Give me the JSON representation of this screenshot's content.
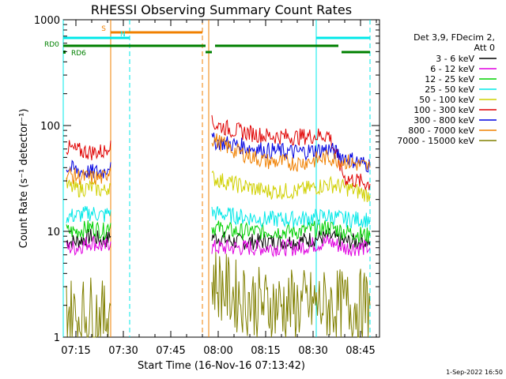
{
  "chart_data": {
    "type": "line",
    "title": "RHESSI Observing Summary Count Rates",
    "xlabel": "Start Time (16-Nov-16 07:13:42)",
    "ylabel": "Count Rate (s⁻¹ detector⁻¹)",
    "yscale": "log",
    "ylim": [
      1,
      1000
    ],
    "xlim": [
      "07:11",
      "08:51"
    ],
    "xticks": [
      "07:15",
      "07:30",
      "07:45",
      "08:00",
      "08:15",
      "08:30",
      "08:45"
    ],
    "yticks": [
      "1",
      "10",
      "100",
      "1000"
    ],
    "footer": "1-Sep-2022 16:50",
    "legend": {
      "header": [
        "Det 3,9, FDecim 2,",
        "Att 0"
      ],
      "position": "right"
    },
    "series": [
      {
        "name": "3 - 6 keV",
        "color": "#000000",
        "segments": [
          {
            "times": [
              "07:12",
              "07:15",
              "07:20",
              "07:24",
              "07:26"
            ],
            "values": [
              8,
              8,
              9,
              8,
              9
            ]
          },
          {
            "times": [
              "07:58",
              "08:05",
              "08:15",
              "08:25",
              "08:35",
              "08:40",
              "08:48"
            ],
            "values": [
              9,
              8,
              8,
              8,
              9,
              8,
              8
            ]
          }
        ]
      },
      {
        "name": "6 - 12 keV",
        "color": "#e000e0",
        "segments": [
          {
            "times": [
              "07:12",
              "07:15",
              "07:20",
              "07:24",
              "07:26"
            ],
            "values": [
              7,
              7,
              8,
              7,
              8
            ]
          },
          {
            "times": [
              "07:58",
              "08:05",
              "08:15",
              "08:25",
              "08:35",
              "08:40",
              "08:48"
            ],
            "values": [
              7,
              7,
              7,
              7,
              8,
              7,
              7
            ]
          }
        ]
      },
      {
        "name": "12 - 25 keV",
        "color": "#00d000",
        "segments": [
          {
            "times": [
              "07:12",
              "07:15",
              "07:20",
              "07:24",
              "07:26"
            ],
            "values": [
              10,
              10,
              11,
              10,
              12
            ]
          },
          {
            "times": [
              "07:58",
              "08:05",
              "08:15",
              "08:25",
              "08:35",
              "08:40",
              "08:48"
            ],
            "values": [
              11,
              10,
              10,
              10,
              11,
              10,
              9
            ]
          }
        ]
      },
      {
        "name": "25 - 50 keV",
        "color": "#00e8e8",
        "segments": [
          {
            "times": [
              "07:12",
              "07:15",
              "07:20",
              "07:24",
              "07:26"
            ],
            "values": [
              14,
              14,
              15,
              14,
              16
            ]
          },
          {
            "times": [
              "07:58",
              "08:05",
              "08:15",
              "08:25",
              "08:35",
              "08:40",
              "08:48"
            ],
            "values": [
              15,
              14,
              13,
              13,
              14,
              13,
              13
            ]
          }
        ]
      },
      {
        "name": "50 - 100 keV",
        "color": "#d0d000",
        "segments": [
          {
            "times": [
              "07:12",
              "07:15",
              "07:20",
              "07:24",
              "07:26"
            ],
            "values": [
              27,
              25,
              26,
              24,
              28
            ]
          },
          {
            "times": [
              "07:58",
              "08:05",
              "08:15",
              "08:25",
              "08:35",
              "08:40",
              "08:48"
            ],
            "values": [
              32,
              28,
              24,
              24,
              28,
              26,
              22
            ]
          }
        ]
      },
      {
        "name": "100 - 300 keV",
        "color": "#e00000",
        "segments": [
          {
            "times": [
              "07:12",
              "07:15",
              "07:20",
              "07:24",
              "07:26"
            ],
            "values": [
              62,
              58,
              56,
              57,
              72
            ]
          },
          {
            "times": [
              "07:58",
              "08:05",
              "08:15",
              "08:25",
              "08:35",
              "08:40",
              "08:48"
            ],
            "values": [
              105,
              90,
              80,
              78,
              82,
              32,
              28
            ]
          }
        ]
      },
      {
        "name": "300 - 800 keV",
        "color": "#0000e0",
        "segments": [
          {
            "times": [
              "07:12",
              "07:15",
              "07:20",
              "07:24",
              "07:26"
            ],
            "values": [
              40,
              38,
              36,
              37,
              45
            ]
          },
          {
            "times": [
              "07:58",
              "08:05",
              "08:15",
              "08:25",
              "08:35",
              "08:40",
              "08:48"
            ],
            "values": [
              72,
              66,
              58,
              56,
              60,
              50,
              42
            ]
          }
        ]
      },
      {
        "name": "800 - 7000 keV",
        "color": "#f08000",
        "segments": [
          {
            "times": [
              "07:12",
              "07:15",
              "07:20",
              "07:24",
              "07:26"
            ],
            "values": [
              35,
              33,
              32,
              32,
              40
            ]
          },
          {
            "times": [
              "07:58",
              "08:05",
              "08:15",
              "08:25",
              "08:35",
              "08:40",
              "08:48"
            ],
            "values": [
              76,
              58,
              46,
              44,
              50,
              46,
              40
            ]
          }
        ]
      },
      {
        "name": "7000 - 15000 keV",
        "color": "#808000",
        "segments": [
          {
            "times": [
              "07:12",
              "07:15",
              "07:20",
              "07:24",
              "07:26"
            ],
            "values": [
              2,
              1.5,
              1.8,
              1.5,
              2
            ]
          },
          {
            "times": [
              "07:58",
              "08:05",
              "08:15",
              "08:25",
              "08:35",
              "08:40",
              "08:48"
            ],
            "values": [
              3.5,
              2.5,
              2,
              2,
              2,
              2,
              2
            ]
          }
        ]
      }
    ],
    "flag_bars": [
      {
        "label": "S",
        "color": "#f08000",
        "start": "07:26",
        "end": "07:55"
      },
      {
        "label": "N",
        "color": "#00e8e8",
        "start": "07:11",
        "end": "07:32"
      },
      {
        "label": "",
        "color": "#00e8e8",
        "start": "08:31",
        "end": "08:48"
      },
      {
        "label": "RD0",
        "color": "#008000",
        "start": "07:11",
        "end": "07:56"
      },
      {
        "label": "",
        "color": "#008000",
        "start": "07:56",
        "end": "07:58"
      },
      {
        "label": "",
        "color": "#008000",
        "start": "07:59",
        "end": "08:38"
      },
      {
        "label": "",
        "color": "#008000",
        "start": "08:39",
        "end": "08:48"
      },
      {
        "label": "RD6",
        "color": "#008000",
        "start": "07:11",
        "end": "07:11"
      }
    ],
    "vlines": [
      {
        "time": "07:11",
        "color": "#00e8e8",
        "style": "solid"
      },
      {
        "time": "07:26",
        "color": "#f08000",
        "style": "solid"
      },
      {
        "time": "07:32",
        "color": "#00e8e8",
        "style": "dashed"
      },
      {
        "time": "07:55",
        "color": "#f08000",
        "style": "dashed"
      },
      {
        "time": "07:57",
        "color": "#f08000",
        "style": "solid"
      },
      {
        "time": "08:31",
        "color": "#00e8e8",
        "style": "solid"
      },
      {
        "time": "08:48",
        "color": "#00e8e8",
        "style": "dashed"
      }
    ]
  }
}
